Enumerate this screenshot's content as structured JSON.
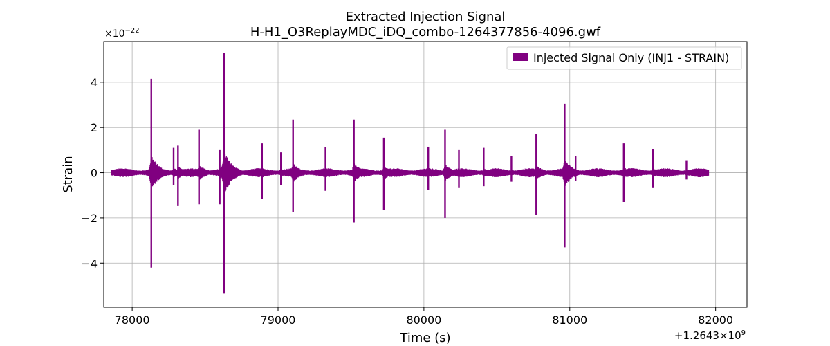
{
  "chart_data": {
    "type": "line",
    "title": "Extracted Injection Signal",
    "subtitle": "H-H1_O3ReplayMDC_iDQ_combo-1264377856-4096.gwf",
    "xlabel": "Time (s)",
    "ylabel": "Strain",
    "x_offset_label": "+1.2643×10",
    "x_offset_exponent": "9",
    "y_scale_label": "×10",
    "y_scale_exponent": "−22",
    "xlim": [
      77805,
      82215
    ],
    "ylim": [
      -5.95,
      5.8
    ],
    "x_ticks": [
      78000,
      79000,
      80000,
      81000,
      82000
    ],
    "x_tick_labels": [
      "78000",
      "79000",
      "80000",
      "81000",
      "82000"
    ],
    "y_ticks": [
      -4,
      -2,
      0,
      2,
      4
    ],
    "y_tick_labels": [
      "−4",
      "−2",
      "0",
      "2",
      "4"
    ],
    "grid": true,
    "legend_position": "top-right",
    "colors": {
      "series": "#800080",
      "grid": "#b0b0b0"
    },
    "series": [
      {
        "name": "Injected Signal Only (INJ1 - STRAIN)",
        "x_range": [
          77856,
          81952
        ],
        "baseline_amplitude": 0.2,
        "bursts": [
          {
            "x": 78131,
            "ymax": 4.15,
            "ymin": -4.2
          },
          {
            "x": 78284,
            "ymax": 1.1,
            "ymin": -0.55
          },
          {
            "x": 78314,
            "ymax": 1.2,
            "ymin": -1.45
          },
          {
            "x": 78458,
            "ymax": 1.9,
            "ymin": -1.4
          },
          {
            "x": 78600,
            "ymax": 1.0,
            "ymin": -1.4
          },
          {
            "x": 78630,
            "ymax": 5.3,
            "ymin": -5.35
          },
          {
            "x": 78890,
            "ymax": 1.3,
            "ymin": -1.15
          },
          {
            "x": 79020,
            "ymax": 0.9,
            "ymin": -0.55
          },
          {
            "x": 79103,
            "ymax": 2.35,
            "ymin": -1.75
          },
          {
            "x": 79325,
            "ymax": 1.15,
            "ymin": -0.8
          },
          {
            "x": 79520,
            "ymax": 2.35,
            "ymin": -2.2
          },
          {
            "x": 79725,
            "ymax": 1.55,
            "ymin": -1.65
          },
          {
            "x": 80030,
            "ymax": 1.15,
            "ymin": -0.75
          },
          {
            "x": 80145,
            "ymax": 1.9,
            "ymin": -2.0
          },
          {
            "x": 80240,
            "ymax": 1.0,
            "ymin": -0.65
          },
          {
            "x": 80410,
            "ymax": 1.1,
            "ymin": -0.6
          },
          {
            "x": 80600,
            "ymax": 0.75,
            "ymin": -0.4
          },
          {
            "x": 80770,
            "ymax": 1.7,
            "ymin": -1.85
          },
          {
            "x": 80965,
            "ymax": 3.05,
            "ymin": -3.3
          },
          {
            "x": 81040,
            "ymax": 0.75,
            "ymin": -0.35
          },
          {
            "x": 81370,
            "ymax": 1.3,
            "ymin": -1.3
          },
          {
            "x": 81570,
            "ymax": 1.05,
            "ymin": -0.65
          },
          {
            "x": 81800,
            "ymax": 0.55,
            "ymin": -0.3
          }
        ]
      }
    ]
  }
}
